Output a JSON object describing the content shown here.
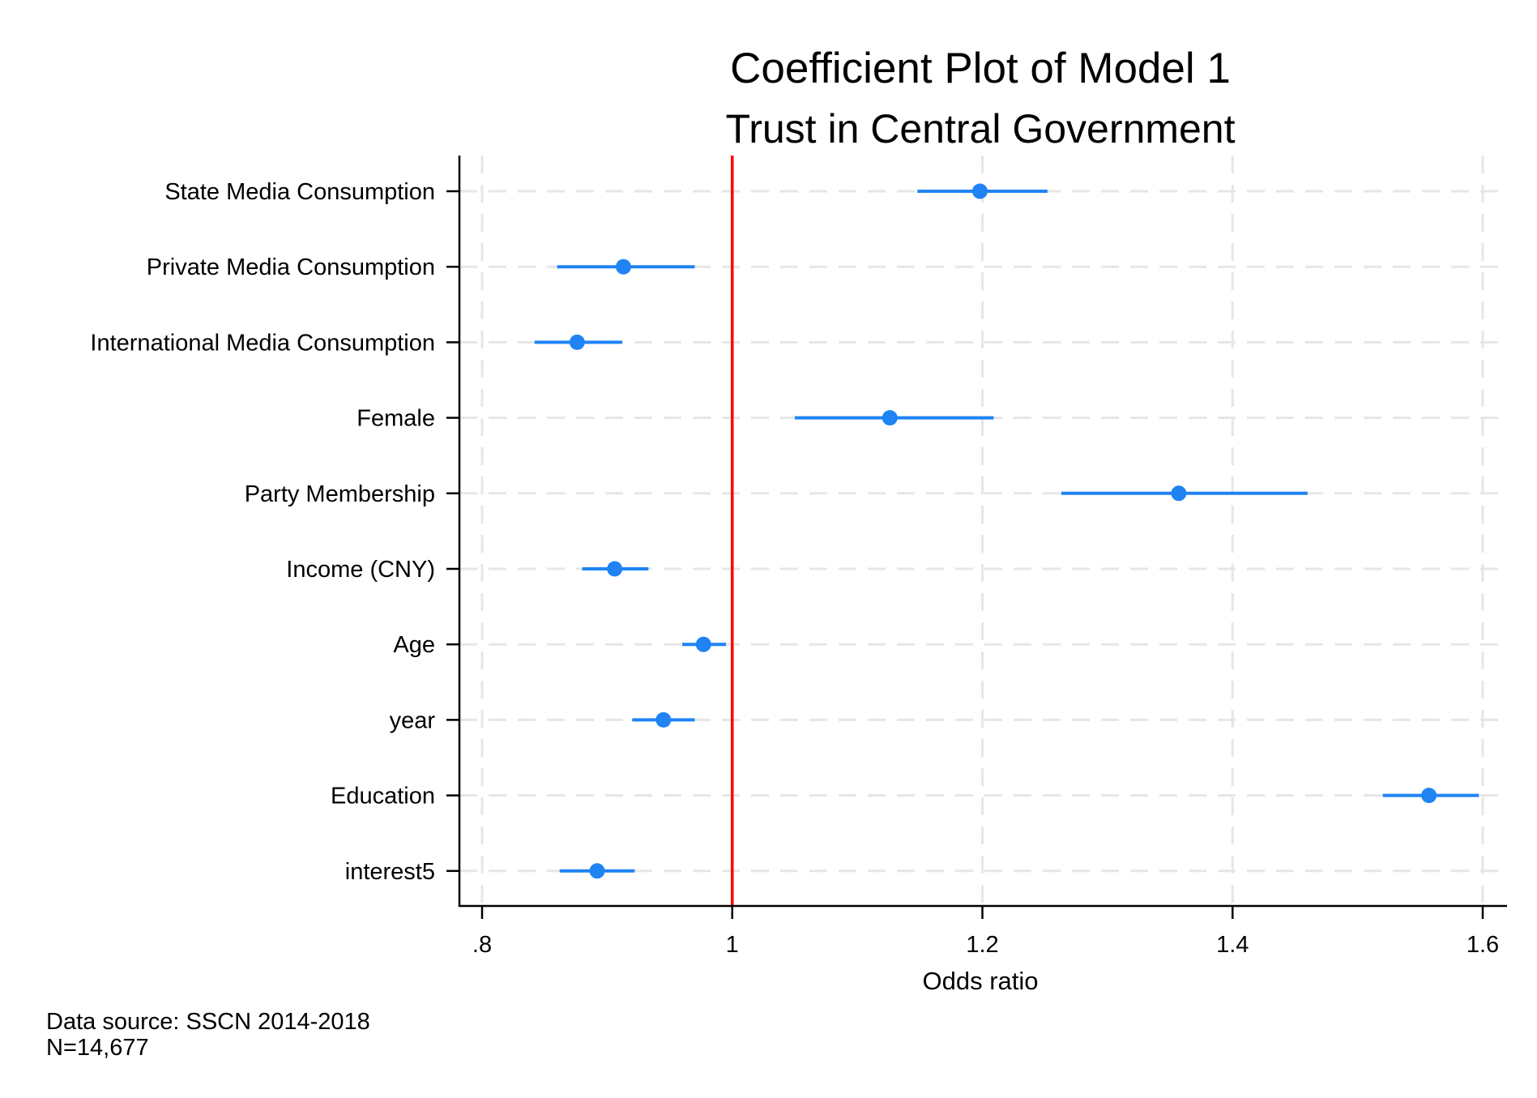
{
  "chart_data": {
    "type": "scatter",
    "subtype": "coefficient-plot",
    "title": "Coefficient Plot of Model 1",
    "subtitle": "Trust in Central Government",
    "xlabel": "Odds ratio",
    "ylabel": "",
    "xlim": [
      0.78,
      1.61
    ],
    "xticks": [
      {
        "value": 0.8,
        "label": ".8"
      },
      {
        "value": 1.0,
        "label": "1"
      },
      {
        "value": 1.2,
        "label": "1.2"
      },
      {
        "value": 1.4,
        "label": "1.4"
      },
      {
        "value": 1.6,
        "label": "1.6"
      }
    ],
    "reference_line": {
      "value": 1.0,
      "color": "#ff0000"
    },
    "grid": true,
    "legend": "none",
    "colors": {
      "marker": "#1f83f4",
      "ci": "#1f83f4",
      "grid": "#e6e6e6",
      "reference": "#ff0000",
      "axis": "#000000"
    },
    "variables": [
      {
        "label": "State Media Consumption",
        "estimate": 1.198,
        "ci_low": 1.148,
        "ci_high": 1.252
      },
      {
        "label": "Private Media Consumption",
        "estimate": 0.913,
        "ci_low": 0.86,
        "ci_high": 0.97
      },
      {
        "label": "International Media Consumption",
        "estimate": 0.876,
        "ci_low": 0.842,
        "ci_high": 0.912
      },
      {
        "label": "Female",
        "estimate": 1.126,
        "ci_low": 1.05,
        "ci_high": 1.209
      },
      {
        "label": "Party Membership",
        "estimate": 1.357,
        "ci_low": 1.263,
        "ci_high": 1.46
      },
      {
        "label": "Income (CNY)",
        "estimate": 0.906,
        "ci_low": 0.88,
        "ci_high": 0.933
      },
      {
        "label": "Age",
        "estimate": 0.977,
        "ci_low": 0.96,
        "ci_high": 0.995
      },
      {
        "label": "year",
        "estimate": 0.945,
        "ci_low": 0.92,
        "ci_high": 0.97
      },
      {
        "label": "Education",
        "estimate": 1.557,
        "ci_low": 1.52,
        "ci_high": 1.597
      },
      {
        "label": "interest5",
        "estimate": 0.892,
        "ci_low": 0.862,
        "ci_high": 0.922
      }
    ]
  },
  "notes": {
    "source": "Data source: SSCN 2014-2018",
    "n": "N=14,677"
  }
}
